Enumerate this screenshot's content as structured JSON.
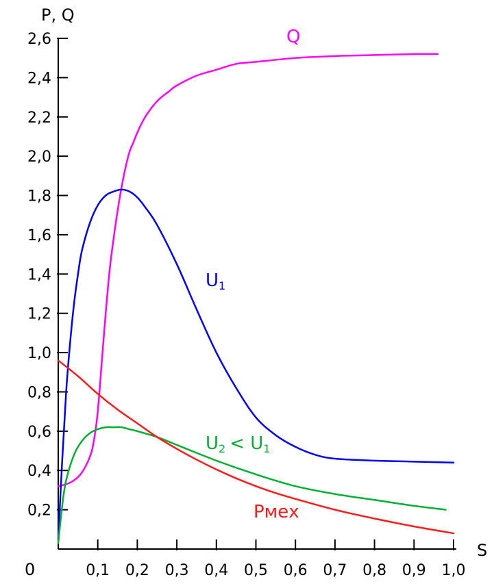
{
  "chart_data": {
    "type": "line",
    "title": "",
    "ylabel": "P, Q",
    "xlabel": "S",
    "origin_label": "0",
    "xlim": [
      0,
      1.0
    ],
    "ylim": [
      0,
      2.6
    ],
    "x_ticks": [
      0.1,
      0.2,
      0.3,
      0.4,
      0.5,
      0.6,
      0.7,
      0.8,
      0.9,
      1.0
    ],
    "x_tick_labels": [
      "0,1",
      "0,2",
      "0,3",
      "0,4",
      "0,5",
      "0,6",
      "0,7",
      "0,8",
      "0,9",
      "1,0"
    ],
    "y_ticks": [
      0.2,
      0.4,
      0.6,
      0.8,
      1.0,
      1.2,
      1.4,
      1.6,
      1.8,
      2.0,
      2.2,
      2.4,
      2.6
    ],
    "y_tick_labels": [
      "0,2",
      "0,4",
      "0,6",
      "0,8",
      "1,0",
      "1,2",
      "1,4",
      "1,6",
      "1,8",
      "2,0",
      "2,2",
      "2,4",
      "2,6"
    ],
    "grid": false,
    "legend": "none",
    "series": [
      {
        "key": "q",
        "label_main": "Q",
        "label_sub": "",
        "label_tail": "",
        "color": "#ff00ff",
        "x": [
          0,
          0.02,
          0.04,
          0.06,
          0.08,
          0.09,
          0.1,
          0.11,
          0.12,
          0.13,
          0.14,
          0.15,
          0.16,
          0.17,
          0.18,
          0.19,
          0.2,
          0.22,
          0.25,
          0.28,
          0.3,
          0.35,
          0.4,
          0.45,
          0.5,
          0.6,
          0.7,
          0.8,
          0.9,
          0.96
        ],
        "y": [
          0.32,
          0.33,
          0.35,
          0.39,
          0.47,
          0.55,
          0.7,
          0.95,
          1.2,
          1.42,
          1.58,
          1.72,
          1.84,
          1.94,
          2.02,
          2.07,
          2.12,
          2.2,
          2.28,
          2.33,
          2.36,
          2.41,
          2.44,
          2.47,
          2.48,
          2.5,
          2.51,
          2.515,
          2.52,
          2.52
        ]
      },
      {
        "key": "u1",
        "label_main": "U",
        "label_sub": "1",
        "label_tail": "",
        "color": "#0000ff",
        "x": [
          0,
          0.01,
          0.02,
          0.03,
          0.04,
          0.05,
          0.06,
          0.08,
          0.1,
          0.12,
          0.14,
          0.16,
          0.18,
          0.2,
          0.22,
          0.25,
          0.3,
          0.35,
          0.4,
          0.45,
          0.5,
          0.55,
          0.6,
          0.65,
          0.7,
          0.8,
          0.9,
          1.0
        ],
        "y": [
          0.05,
          0.45,
          0.8,
          1.05,
          1.25,
          1.4,
          1.52,
          1.66,
          1.75,
          1.8,
          1.82,
          1.83,
          1.82,
          1.79,
          1.74,
          1.65,
          1.45,
          1.22,
          1.0,
          0.82,
          0.67,
          0.58,
          0.52,
          0.48,
          0.46,
          0.45,
          0.445,
          0.44
        ]
      },
      {
        "key": "u2",
        "label_main": "U",
        "label_sub": "2",
        "label_tail": "< U",
        "label_tail_sub": "1",
        "color": "#00b030",
        "x": [
          0,
          0.01,
          0.02,
          0.04,
          0.06,
          0.08,
          0.1,
          0.12,
          0.14,
          0.16,
          0.18,
          0.2,
          0.25,
          0.3,
          0.4,
          0.5,
          0.6,
          0.7,
          0.8,
          0.9,
          0.98
        ],
        "y": [
          0.03,
          0.22,
          0.35,
          0.48,
          0.55,
          0.59,
          0.61,
          0.62,
          0.62,
          0.62,
          0.61,
          0.6,
          0.57,
          0.53,
          0.45,
          0.38,
          0.32,
          0.28,
          0.25,
          0.22,
          0.2
        ]
      },
      {
        "key": "pmex",
        "label_main": "Pмех",
        "label_sub": "",
        "label_tail": "",
        "color": "#ff1a1a",
        "x": [
          0,
          0.05,
          0.1,
          0.15,
          0.2,
          0.25,
          0.3,
          0.35,
          0.4,
          0.45,
          0.5,
          0.55,
          0.6,
          0.7,
          0.8,
          0.9,
          1.0
        ],
        "y": [
          0.96,
          0.88,
          0.79,
          0.71,
          0.64,
          0.57,
          0.51,
          0.455,
          0.405,
          0.36,
          0.32,
          0.285,
          0.255,
          0.2,
          0.155,
          0.115,
          0.08
        ]
      }
    ]
  }
}
